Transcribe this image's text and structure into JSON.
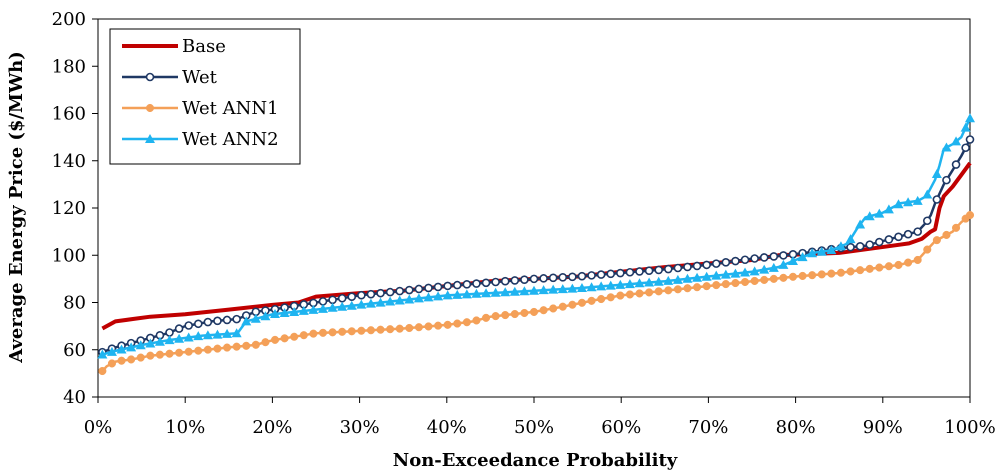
{
  "chart_data": {
    "type": "line",
    "title": "",
    "xlabel": "Non-Exceedance Probability",
    "ylabel": "Average Energy Price ($/MWh)",
    "xlim": [
      0,
      100
    ],
    "ylim": [
      40,
      200
    ],
    "x_ticks": [
      "0%",
      "10%",
      "20%",
      "30%",
      "40%",
      "50%",
      "60%",
      "70%",
      "80%",
      "90%",
      "100%"
    ],
    "y_ticks": [
      "40",
      "60",
      "80",
      "100",
      "120",
      "140",
      "160",
      "180",
      "200"
    ],
    "grid": false,
    "legend_position": "top-left",
    "series": [
      {
        "name": "Base",
        "color": "#c00000",
        "marker": "none",
        "points": [
          [
            0.5,
            69
          ],
          [
            1,
            70
          ],
          [
            2,
            72
          ],
          [
            4,
            73
          ],
          [
            6,
            74
          ],
          [
            10,
            75
          ],
          [
            15,
            77
          ],
          [
            20,
            79
          ],
          [
            23,
            80
          ],
          [
            25,
            82.5
          ],
          [
            30,
            84
          ],
          [
            35,
            85
          ],
          [
            40,
            87
          ],
          [
            45,
            89
          ],
          [
            50,
            90
          ],
          [
            55,
            91
          ],
          [
            60,
            93
          ],
          [
            65,
            95
          ],
          [
            70,
            96.5
          ],
          [
            75,
            98
          ],
          [
            78,
            100
          ],
          [
            85,
            101
          ],
          [
            89,
            103
          ],
          [
            91,
            104
          ],
          [
            93,
            105
          ],
          [
            94.5,
            107
          ],
          [
            95.5,
            110
          ],
          [
            96,
            111
          ],
          [
            96.5,
            120
          ],
          [
            97,
            125
          ],
          [
            98,
            129
          ],
          [
            99,
            134
          ],
          [
            100,
            139
          ]
        ]
      },
      {
        "name": "Wet",
        "color": "#1f3864",
        "marker": "open-circle",
        "points": [
          [
            0.5,
            59
          ],
          [
            2,
            61
          ],
          [
            5,
            64
          ],
          [
            8,
            67
          ],
          [
            10,
            70
          ],
          [
            13,
            72
          ],
          [
            16,
            73
          ],
          [
            18,
            76
          ],
          [
            20,
            77
          ],
          [
            25,
            80
          ],
          [
            30,
            83
          ],
          [
            35,
            85
          ],
          [
            40,
            87
          ],
          [
            45,
            88.5
          ],
          [
            50,
            90
          ],
          [
            55,
            91
          ],
          [
            60,
            92.5
          ],
          [
            65,
            94
          ],
          [
            70,
            96
          ],
          [
            75,
            98.5
          ],
          [
            80,
            100.5
          ],
          [
            85,
            103
          ],
          [
            88,
            104
          ],
          [
            90,
            106
          ],
          [
            92,
            108
          ],
          [
            94,
            110
          ],
          [
            95,
            114
          ],
          [
            95.5,
            117
          ],
          [
            96,
            122
          ],
          [
            97,
            130
          ],
          [
            98,
            136
          ],
          [
            99,
            142
          ],
          [
            100,
            149
          ]
        ]
      },
      {
        "name": "Wet ANN1",
        "color": "#f4a058",
        "marker": "filled-circle",
        "points": [
          [
            0.5,
            51
          ],
          [
            1,
            53
          ],
          [
            2,
            55
          ],
          [
            4,
            56
          ],
          [
            6,
            57.5
          ],
          [
            10,
            59
          ],
          [
            15,
            61
          ],
          [
            18,
            62
          ],
          [
            20,
            64
          ],
          [
            25,
            67
          ],
          [
            30,
            68
          ],
          [
            35,
            69
          ],
          [
            40,
            70.5
          ],
          [
            43,
            72
          ],
          [
            45,
            74
          ],
          [
            50,
            76
          ],
          [
            53,
            78
          ],
          [
            57,
            81
          ],
          [
            60,
            83
          ],
          [
            65,
            85
          ],
          [
            70,
            87
          ],
          [
            75,
            89
          ],
          [
            80,
            91
          ],
          [
            85,
            92.5
          ],
          [
            90,
            95
          ],
          [
            92,
            96
          ],
          [
            94,
            98
          ],
          [
            95,
            102
          ],
          [
            96,
            106
          ],
          [
            98,
            110
          ],
          [
            99,
            114
          ],
          [
            100,
            117
          ]
        ]
      },
      {
        "name": "Wet ANN2",
        "color": "#1fb4f0",
        "marker": "filled-triangle",
        "points": [
          [
            0.5,
            58
          ],
          [
            2,
            59.5
          ],
          [
            5,
            62
          ],
          [
            8,
            64
          ],
          [
            12,
            66
          ],
          [
            16,
            67
          ],
          [
            17,
            72
          ],
          [
            20,
            75
          ],
          [
            25,
            77
          ],
          [
            30,
            79
          ],
          [
            35,
            81
          ],
          [
            40,
            83
          ],
          [
            45,
            84
          ],
          [
            50,
            85
          ],
          [
            55,
            86
          ],
          [
            60,
            87.5
          ],
          [
            65,
            89
          ],
          [
            70,
            91
          ],
          [
            75,
            93
          ],
          [
            78,
            95
          ],
          [
            80,
            98
          ],
          [
            82,
            101
          ],
          [
            84,
            102
          ],
          [
            86,
            105
          ],
          [
            87,
            111
          ],
          [
            88,
            116
          ],
          [
            90,
            118
          ],
          [
            92,
            122
          ],
          [
            94,
            123
          ],
          [
            95,
            125
          ],
          [
            96,
            132
          ],
          [
            96.5,
            138
          ],
          [
            97,
            145
          ],
          [
            98,
            147
          ],
          [
            99,
            150
          ],
          [
            100,
            158
          ]
        ]
      }
    ]
  }
}
